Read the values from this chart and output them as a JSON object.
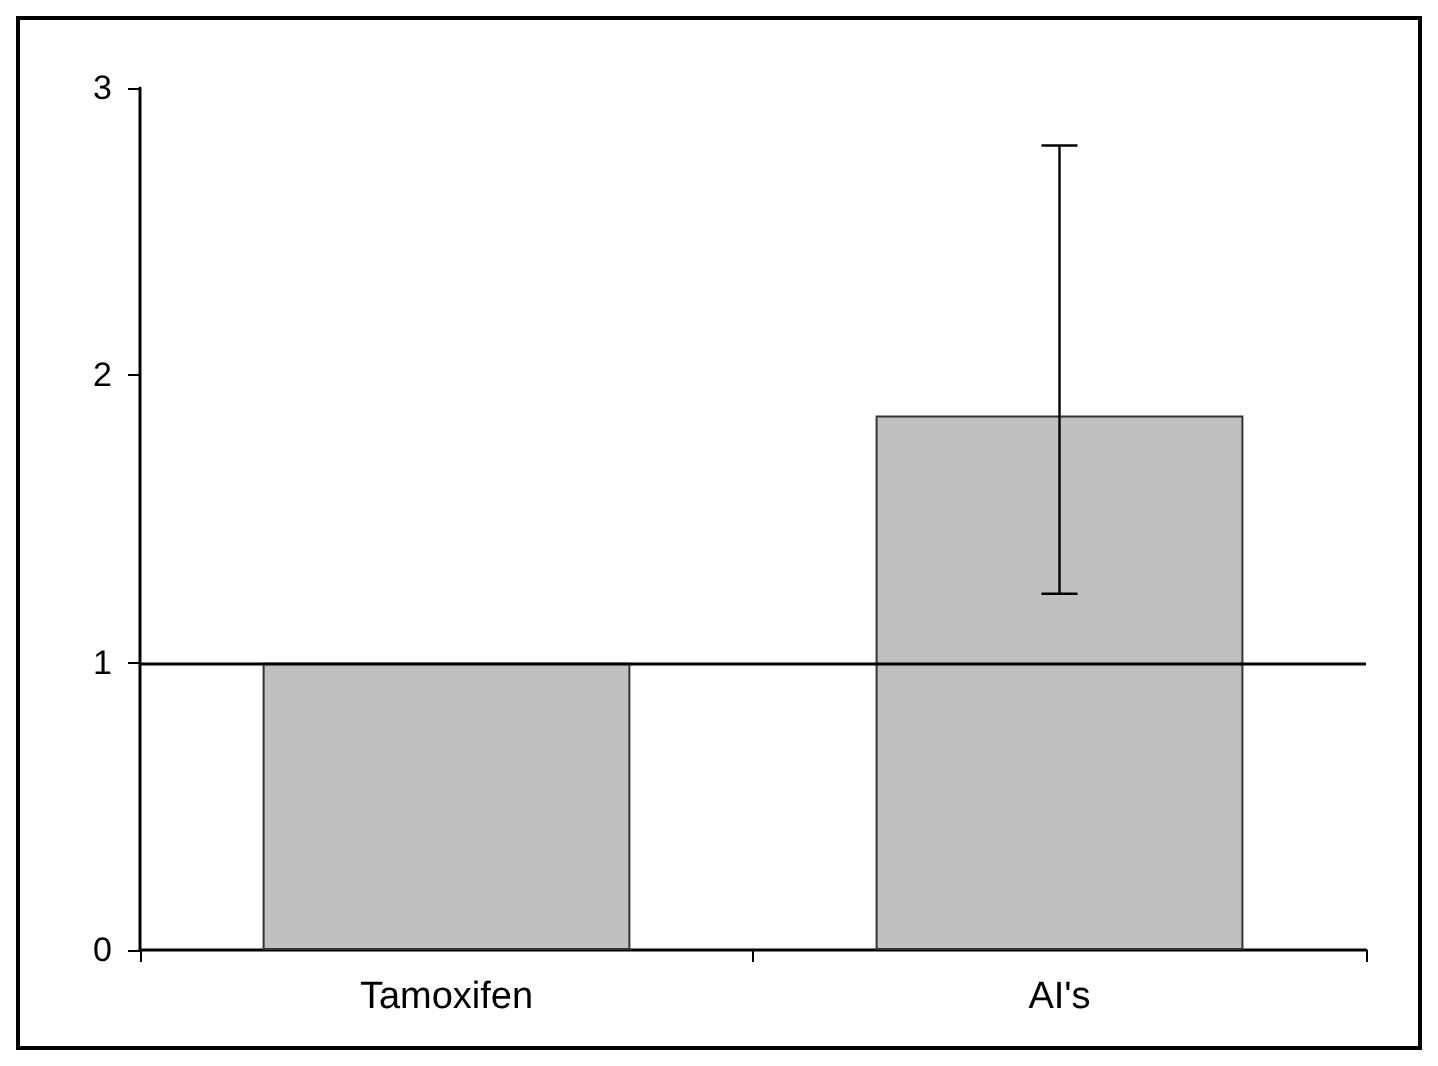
{
  "chart_data": {
    "type": "bar",
    "categories": [
      "Tamoxifen",
      "AI's"
    ],
    "values": [
      1,
      1.86
    ],
    "color": "#c0c0c0",
    "errors": [
      null,
      [
        1.24,
        2.8
      ]
    ],
    "ylim": [
      0,
      3
    ],
    "yticks": [
      0,
      1,
      2,
      3
    ],
    "grid": false,
    "ref_lines": [
      {
        "axis": "y",
        "value": 1,
        "color": "#000000"
      }
    ]
  }
}
